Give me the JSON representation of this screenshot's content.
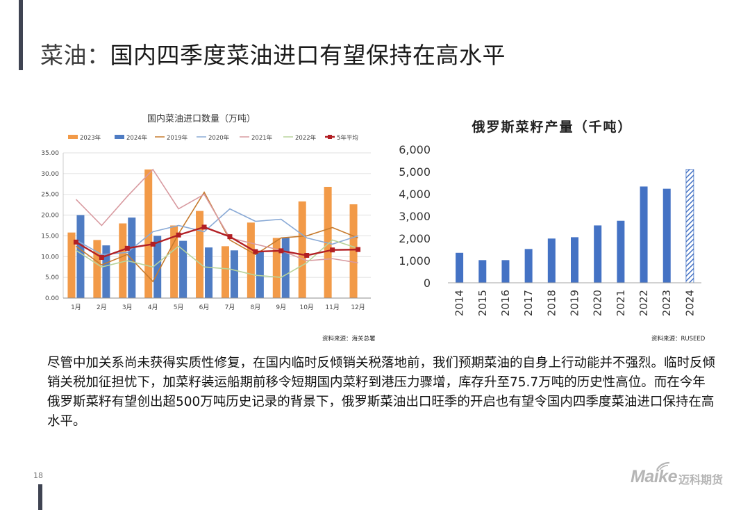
{
  "header": {
    "title_prefix": "菜油：",
    "title_main": "国内四季度菜油进口有望保持在高水平"
  },
  "chart_data": [
    {
      "type": "bar",
      "title": "国内菜油进口数量（万吨）",
      "categories": [
        "1月",
        "2月",
        "3月",
        "4月",
        "5月",
        "6月",
        "7月",
        "8月",
        "9月",
        "10月",
        "11月",
        "12月"
      ],
      "ylim": [
        0,
        35
      ],
      "yticks": [
        "0.00",
        "5.00",
        "10.00",
        "15.00",
        "20.00",
        "25.00",
        "30.00",
        "35.00"
      ],
      "bar_series": [
        {
          "name": "2023年",
          "color": "#f29a48",
          "values": [
            15.8,
            14.0,
            18.0,
            31.0,
            17.5,
            21.0,
            12.5,
            18.2,
            14.5,
            23.3,
            26.8,
            22.6
          ]
        },
        {
          "name": "2024年",
          "color": "#4f7cc3",
          "values": [
            20.0,
            12.7,
            19.4,
            15.0,
            13.8,
            12.2,
            11.5,
            11.2,
            14.6,
            null,
            null,
            null
          ]
        }
      ],
      "line_series": [
        {
          "name": "2019年",
          "color": "#c77b2e",
          "values": [
            12.5,
            8.0,
            10.5,
            4.0,
            15.5,
            25.5,
            14.0,
            10.5,
            14.5,
            15.0,
            17.0,
            14.5
          ]
        },
        {
          "name": "2020年",
          "color": "#8aaad6",
          "values": [
            14.0,
            10.5,
            11.0,
            16.0,
            17.5,
            16.0,
            21.5,
            18.5,
            19.0,
            14.5,
            13.0,
            15.0
          ]
        },
        {
          "name": "2021年",
          "color": "#d89aa0",
          "values": [
            23.8,
            17.5,
            24.5,
            31.0,
            21.5,
            25.0,
            14.5,
            13.0,
            11.5,
            9.0,
            9.5,
            8.5
          ]
        },
        {
          "name": "2022年",
          "color": "#b8d39a",
          "values": [
            11.5,
            7.5,
            9.0,
            7.5,
            12.5,
            7.5,
            7.0,
            5.5,
            5.0,
            8.5,
            14.0,
            12.0
          ]
        },
        {
          "name": "5年平均",
          "color": "#b21f24",
          "values": [
            13.5,
            9.8,
            12.0,
            13.0,
            15.2,
            17.1,
            14.8,
            11.2,
            11.4,
            10.3,
            11.6,
            11.7
          ]
        }
      ],
      "source": "资料来源：海关总署"
    },
    {
      "type": "bar",
      "title": "俄罗斯菜籽产量（千吨）",
      "categories": [
        "2014",
        "2015",
        "2016",
        "2017",
        "2018",
        "2019",
        "2020",
        "2021",
        "2022",
        "2023",
        "2024"
      ],
      "values": [
        1350,
        1020,
        1020,
        1520,
        1990,
        2050,
        2580,
        2790,
        4330,
        4230,
        5100
      ],
      "forecast_index": 10,
      "ylim": [
        0,
        6000
      ],
      "yticks": [
        "0",
        "1,000",
        "2,000",
        "3,000",
        "4,000",
        "5,000",
        "6,000"
      ],
      "color": "#4472c4",
      "source": "资料来源：RUSEED"
    }
  ],
  "body": {
    "paragraph": "尽管中加关系尚未获得实质性修复，在国内临时反倾销关税落地前，我们预期菜油的自身上行动能并不强烈。临时反倾销关税加征担忧下，加菜籽装运船期前移令短期国内菜籽到港压力骤增，库存升至75.7万吨的历史性高位。而在今年俄罗斯菜籽有望创出超500万吨历史记录的背景下，俄罗斯菜油出口旺季的开启也有望令国内四季度菜油进口保持在高水平。"
  },
  "footer": {
    "page_number": "18",
    "logo_latin": "Maike",
    "logo_cn": "迈科期货"
  }
}
